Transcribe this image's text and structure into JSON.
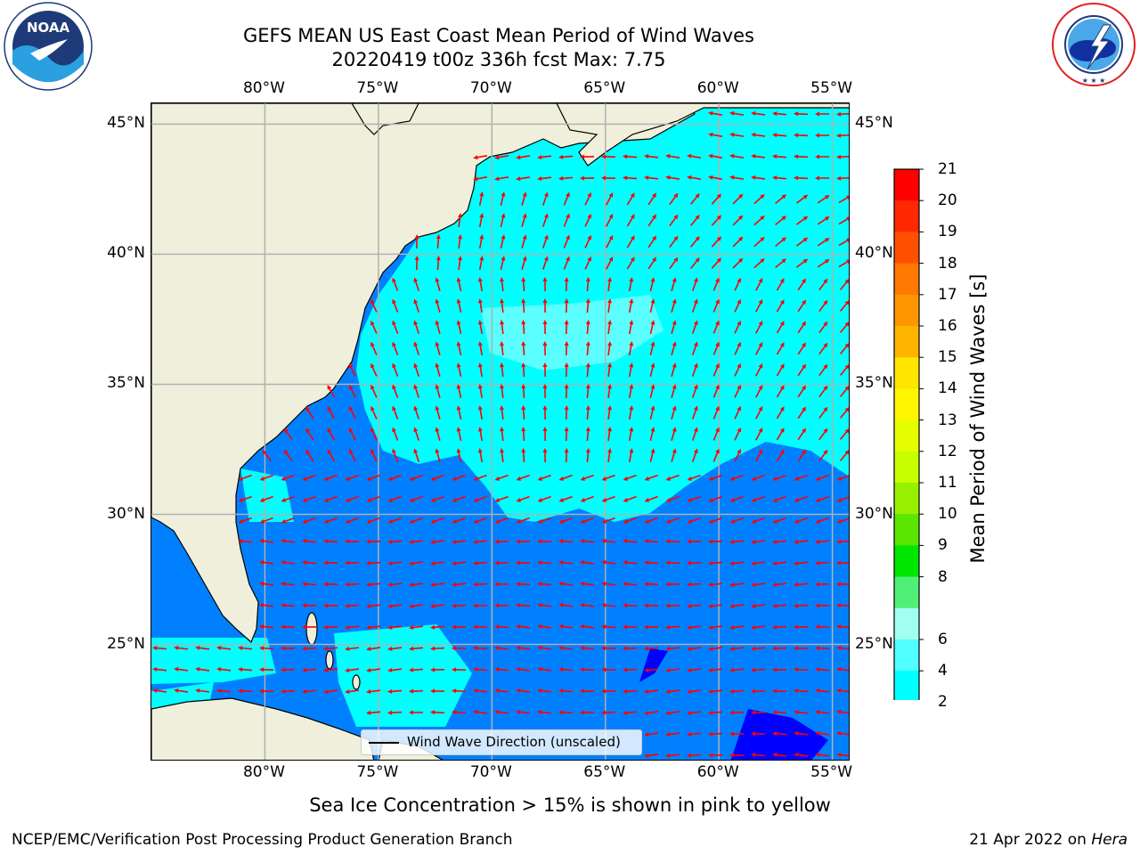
{
  "title": {
    "line1": "GEFS MEAN US East Coast Mean Period of Wind Waves",
    "line2": "20220419 t00z 336h fcst   Max: 7.75"
  },
  "logos": {
    "noaa": {
      "text": "NOAA",
      "ring_text": "NATIONAL OCEANIC AND ATMOSPHERIC ADMINISTRATION · U.S. DEPARTMENT OF COMMERCE"
    },
    "nws": {
      "ring_text": "NATIONAL WEATHER SERVICE"
    }
  },
  "map": {
    "lon_labels": [
      "80°W",
      "75°W",
      "70°W",
      "65°W",
      "60°W",
      "55°W"
    ],
    "lon_values": [
      -80,
      -75,
      -70,
      -65,
      -60,
      -55
    ],
    "lat_labels": [
      "45°N",
      "40°N",
      "35°N",
      "30°N",
      "25°N"
    ],
    "lat_values": [
      45,
      40,
      35,
      30,
      25
    ],
    "extent": {
      "lon_min": -85,
      "lon_max": -54.2,
      "lat_min": 20.5,
      "lat_max": 45.8
    },
    "legend": "Wind Wave Direction (unscaled)",
    "colors": {
      "land": "#efefdc",
      "ocean_2_4": "#0080ff",
      "ocean_4_6": "#00ffff",
      "ocean_6_8": "#66ffff",
      "ocean_lt_2": "#0000ff",
      "arrow": "#ff0000",
      "grid": "#b0b0b0"
    }
  },
  "colorbar": {
    "label": "Mean Period of Wind Waves [s]",
    "ticks": [
      "21",
      "20",
      "19",
      "18",
      "17",
      "16",
      "15",
      "14",
      "13",
      "12",
      "11",
      "10",
      "9",
      "8",
      "6",
      "4",
      "2"
    ],
    "colors": [
      "#ff0000",
      "#ff2800",
      "#ff5000",
      "#ff7800",
      "#ff9600",
      "#ffb400",
      "#ffe600",
      "#fff500",
      "#e6ff00",
      "#c8ff00",
      "#96f000",
      "#5ae600",
      "#00e600",
      "#50f078",
      "#a0fff0",
      "#50ffff",
      "#00ffff",
      "#0080ff"
    ],
    "under_color": "#0000ff"
  },
  "sea_ice_note": "Sea Ice Concentration > 15% is shown in pink to yellow",
  "footer": {
    "left": "NCEP/EMC/Verification Post Processing Product Generation Branch",
    "date": "21 Apr 2022 on ",
    "host": "Hera"
  }
}
